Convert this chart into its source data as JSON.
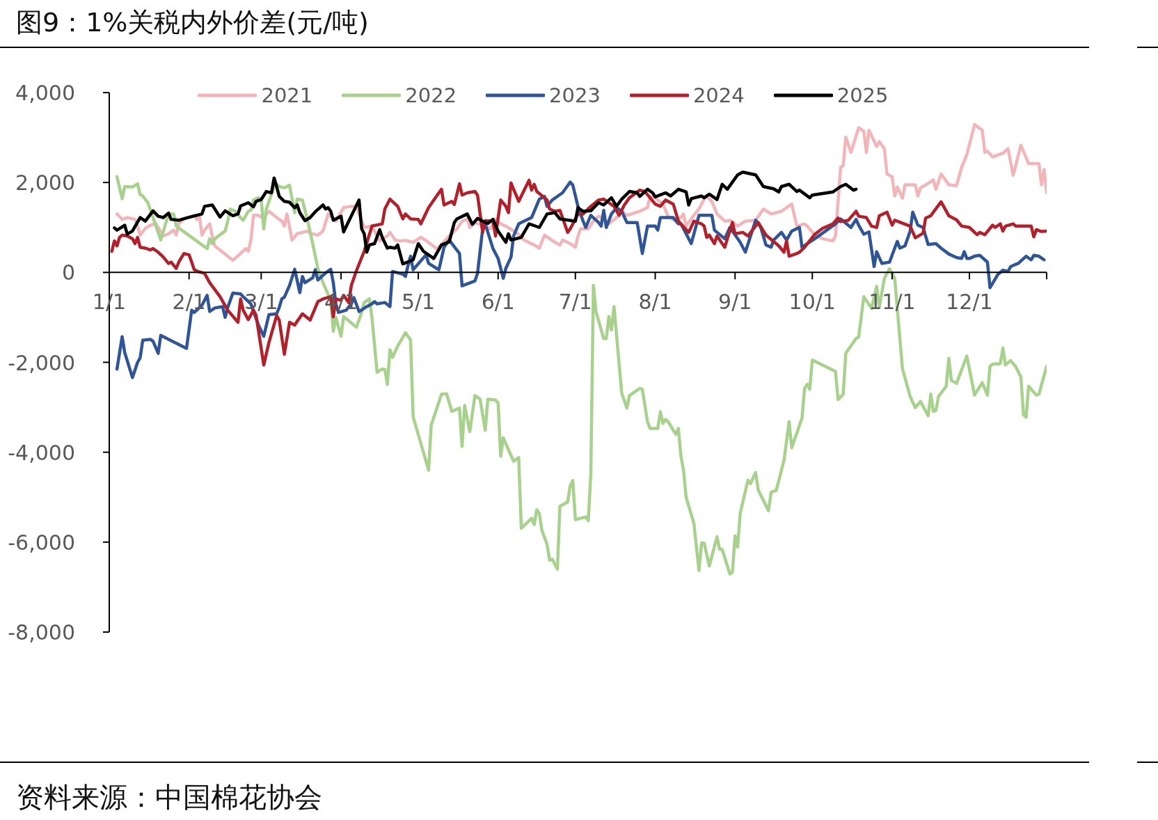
{
  "chart_data": {
    "type": "line",
    "title": "图9：1%关税内外价差(元/吨)",
    "annotations": [
      "资料来源：中国棉花协会"
    ],
    "xlim": [
      "--01-01",
      "--12-31"
    ],
    "xticks": [
      {
        "value": "--01-01",
        "label": "1/1"
      },
      {
        "value": "--02-01",
        "label": "2/1"
      },
      {
        "value": "--03-01",
        "label": "3/1"
      },
      {
        "value": "--04-01",
        "label": "4/1"
      },
      {
        "value": "--05-01",
        "label": "5/1"
      },
      {
        "value": "--06-01",
        "label": "6/1"
      },
      {
        "value": "--07-01",
        "label": "7/1"
      },
      {
        "value": "--08-01",
        "label": "8/1"
      },
      {
        "value": "--09-01",
        "label": "9/1"
      },
      {
        "value": "--10-01",
        "label": "10/1"
      },
      {
        "value": "--11-01",
        "label": "11/1"
      },
      {
        "value": "--12-01",
        "label": "12/1"
      },
      {
        "value": "--12-31",
        "label": null
      }
    ],
    "ylim": [
      -8000,
      4000
    ],
    "yticks": [
      {
        "value": -8000,
        "label": "-8,000"
      },
      {
        "value": -6000,
        "label": "-6,000"
      },
      {
        "value": -4000,
        "label": "-4,000"
      },
      {
        "value": -2000,
        "label": "-2,000"
      },
      {
        "value": 0,
        "label": "0"
      },
      {
        "value": 2000,
        "label": "2,000"
      },
      {
        "value": 4000,
        "label": "4,000"
      }
    ],
    "legend": "top",
    "series": [
      {
        "name": "2021",
        "color": "#f2b5b9",
        "x": [
          "--01-04",
          "--01-06",
          "--01-08",
          "--01-11",
          "--01-12",
          "--01-13",
          "--01-15",
          "--01-17",
          "--01-19",
          "--01-22",
          "--01-24",
          "--01-26",
          "--01-27",
          "--01-28",
          "--01-30",
          "--02-03",
          "--02-04",
          "--02-05",
          "--02-06",
          "--02-07",
          "--02-09",
          "--02-10",
          "--02-11",
          "--02-18",
          "--02-21",
          "--02-23",
          "--02-24",
          "--02-25",
          "--02-26",
          "--02-28",
          "--03-02",
          "--03-03",
          "--03-04",
          "--03-07",
          "--03-09",
          "--03-10",
          "--03-11",
          "--03-13",
          "--03-15",
          "--03-17",
          "--03-19",
          "--03-20",
          "--03-23",
          "--03-25",
          "--03-27",
          "--03-30",
          "--04-02",
          "--04-05",
          "--04-07",
          "--04-08",
          "--04-10",
          "--04-13",
          "--04-16",
          "--04-17",
          "--04-19",
          "--04-20",
          "--04-22",
          "--04-24",
          "--04-26",
          "--04-29",
          "--05-02",
          "--05-04",
          "--05-08",
          "--05-09",
          "--05-12",
          "--05-13",
          "--05-16",
          "--05-18",
          "--05-20",
          "--05-21",
          "--05-23",
          "--05-26",
          "--05-29",
          "--05-31",
          "--06-02",
          "--06-04",
          "--06-07",
          "--06-10",
          "--06-11",
          "--06-15",
          "--06-17",
          "--06-19",
          "--06-21",
          "--06-23",
          "--06-25",
          "--06-26",
          "--06-29",
          "--07-01",
          "--07-02",
          "--07-03",
          "--07-06",
          "--07-08",
          "--07-10",
          "--07-12",
          "--07-14",
          "--07-17",
          "--07-19",
          "--07-21",
          "--07-26",
          "--07-29",
          "--07-30",
          "--08-01",
          "--08-04",
          "--08-06",
          "--08-09",
          "--08-11",
          "--08-12",
          "--08-13",
          "--08-16",
          "--08-18",
          "--08-20",
          "--08-21",
          "--08-23",
          "--08-25",
          "--08-28",
          "--08-30",
          "--09-02",
          "--09-05",
          "--09-09",
          "--09-12",
          "--09-15",
          "--09-19",
          "--09-23",
          "--09-25",
          "--09-28",
          "--09-29",
          "--10-02",
          "--10-05",
          "--10-09",
          "--10-10",
          "--10-12",
          "--10-13",
          "--10-14",
          "--10-16",
          "--10-19",
          "--10-21",
          "--10-22",
          "--10-23",
          "--10-26",
          "--10-27",
          "--10-29",
          "--10-30",
          "--11-01",
          "--11-02",
          "--11-03",
          "--11-05",
          "--11-06",
          "--11-10",
          "--11-11",
          "--11-12",
          "--11-15",
          "--11-17",
          "--11-18",
          "--11-20",
          "--11-22",
          "--11-23",
          "--11-26",
          "--11-28",
          "--11-30",
          "--12-02",
          "--12-03",
          "--12-06",
          "--12-07",
          "--12-08",
          "--12-10",
          "--12-14",
          "--12-16",
          "--12-18",
          "--12-21",
          "--12-24",
          "--12-28",
          "--12-29",
          "--12-30",
          "--12-31"
        ],
        "values": [
          1300,
          1180,
          1220,
          1180,
          1030,
          830,
          980,
          1050,
          1090,
          810,
          860,
          940,
          830,
          1080,
          1190,
          1270,
          1180,
          1270,
          830,
          940,
          1080,
          810,
          590,
          270,
          420,
          530,
          470,
          720,
          1270,
          1270,
          1190,
          1300,
          1360,
          1220,
          1140,
          1030,
          1300,
          720,
          860,
          890,
          920,
          870,
          830,
          920,
          1300,
          1140,
          1440,
          1470,
          1470,
          1300,
          1000,
          1030,
          700,
          750,
          810,
          890,
          720,
          700,
          710,
          670,
          780,
          710,
          530,
          560,
          750,
          810,
          970,
          1140,
          1190,
          1000,
          1110,
          1050,
          970,
          1190,
          1080,
          1030,
          920,
          810,
          720,
          610,
          540,
          830,
          750,
          670,
          610,
          720,
          640,
          560,
          810,
          970,
          970,
          1140,
          1250,
          1190,
          1080,
          1220,
          1360,
          1270,
          1360,
          1440,
          1690,
          1660,
          1520,
          1250,
          1140,
          1220,
          1300,
          1030,
          1270,
          1410,
          1630,
          1690,
          1580,
          1300,
          1140,
          1160,
          1030,
          1140,
          1160,
          1410,
          1300,
          1360,
          1520,
          1030,
          1080,
          1030,
          830,
          750,
          700,
          810,
          2340,
          2370,
          3010,
          2670,
          3220,
          3140,
          2670,
          3160,
          2800,
          2910,
          2750,
          2190,
          2130,
          1700,
          1900,
          1650,
          1950,
          1950,
          1700,
          1880,
          1980,
          2060,
          1850,
          2190,
          2030,
          1950,
          1930,
          2340,
          2620,
          3060,
          3290,
          3160,
          2670,
          2700,
          2570,
          2650,
          2750,
          2160,
          2830,
          2420,
          2420,
          1950,
          2290,
          1770
        ]
      },
      {
        "name": "2022",
        "color": "#a9d18e",
        "x": [
          "--01-04",
          "--01-06",
          "--01-07",
          "--01-10",
          "--01-12",
          "--01-13",
          "--01-14",
          "--01-16",
          "--01-21",
          "--01-24",
          "--01-26",
          "--01-27",
          "--02-08",
          "--02-09",
          "--02-10",
          "--02-11",
          "--02-15",
          "--02-16",
          "--02-17",
          "--02-19",
          "--02-21",
          "--02-22",
          "--02-24",
          "--02-25",
          "--02-26",
          "--02-28",
          "--03-01",
          "--03-02",
          "--03-03",
          "--03-05",
          "--03-06",
          "--03-07",
          "--03-08",
          "--03-10",
          "--03-12",
          "--03-14",
          "--03-15",
          "--03-17",
          "--03-19",
          "--03-21",
          "--03-23",
          "--03-25",
          "--03-28",
          "--03-29",
          "--03-30",
          "--04-01",
          "--04-02",
          "--04-07",
          "--04-09",
          "--04-10",
          "--04-12",
          "--04-13",
          "--04-15",
          "--04-17",
          "--04-18",
          "--04-19",
          "--04-20",
          "--04-21",
          "--04-23",
          "--04-26",
          "--04-28",
          "--04-29",
          "--05-05",
          "--05-06",
          "--05-10",
          "--05-12",
          "--05-14",
          "--05-17",
          "--05-18",
          "--05-19",
          "--05-21",
          "--05-23",
          "--05-25",
          "--05-27",
          "--05-28",
          "--05-31",
          "--06-01",
          "--06-02",
          "--06-03",
          "--06-07",
          "--06-09",
          "--06-10",
          "--06-14",
          "--06-15",
          "--06-16",
          "--06-17",
          "--06-18",
          "--06-20",
          "--06-21",
          "--06-22",
          "--06-24",
          "--06-25",
          "--06-28",
          "--06-29",
          "--06-30",
          "--07-01",
          "--07-05",
          "--07-06",
          "--07-07",
          "--07-08",
          "--07-09",
          "--07-12",
          "--07-13",
          "--07-14",
          "--07-15",
          "--07-16",
          "--07-19",
          "--07-21",
          "--07-22",
          "--07-26",
          "--07-27",
          "--07-29",
          "--07-30",
          "--08-02",
          "--08-03",
          "--08-04",
          "--08-05",
          "--08-06",
          "--08-09",
          "--08-10",
          "--08-11",
          "--08-12",
          "--08-13",
          "--08-16",
          "--08-18",
          "--08-19",
          "--08-20",
          "--08-22",
          "--08-25",
          "--08-26",
          "--08-27",
          "--08-30",
          "--08-31",
          "--09-01",
          "--09-02",
          "--09-03",
          "--09-06",
          "--09-07",
          "--09-09",
          "--09-10",
          "--09-14",
          "--09-15",
          "--09-17",
          "--09-20",
          "--09-22",
          "--09-23",
          "--09-25",
          "--09-27",
          "--09-28",
          "--09-29",
          "--09-30",
          "--10-01",
          "--10-10",
          "--10-11",
          "--10-13",
          "--10-14",
          "--10-18",
          "--10-19",
          "--10-21",
          "--10-24",
          "--10-26",
          "--10-27",
          "--10-29",
          "--10-31",
          "--11-02",
          "--11-05",
          "--11-08",
          "--11-10",
          "--11-12",
          "--11-15",
          "--11-16",
          "--11-17",
          "--11-18",
          "--11-19",
          "--11-22",
          "--11-23",
          "--11-24",
          "--11-26",
          "--11-30",
          "--12-03",
          "--12-06",
          "--12-08",
          "--12-09",
          "--12-10",
          "--12-13",
          "--12-14",
          "--12-15",
          "--12-17",
          "--12-19",
          "--12-21",
          "--12-22",
          "--12-23",
          "--12-24",
          "--12-27",
          "--12-28",
          "--12-31"
        ],
        "values": [
          2130,
          1640,
          1910,
          1900,
          1970,
          1730,
          1700,
          1550,
          720,
          1300,
          1300,
          1030,
          530,
          750,
          640,
          750,
          920,
          1140,
          1410,
          1360,
          1220,
          1160,
          1360,
          1380,
          1610,
          1660,
          1630,
          970,
          1410,
          1740,
          1910,
          1960,
          1910,
          1880,
          1940,
          1330,
          1630,
          1610,
          1160,
          640,
          90,
          -230,
          -620,
          -1310,
          -1000,
          -1420,
          -980,
          -1220,
          -890,
          -670,
          -590,
          -1000,
          -2220,
          -2150,
          -2160,
          -2490,
          -1720,
          -1890,
          -1640,
          -1340,
          -1500,
          -3210,
          -4400,
          -3400,
          -2710,
          -2700,
          -3090,
          -3020,
          -3870,
          -2960,
          -3540,
          -2740,
          -2820,
          -3510,
          -2820,
          -2840,
          -2910,
          -4090,
          -3680,
          -4200,
          -4120,
          -5690,
          -5470,
          -5610,
          -5280,
          -5360,
          -5740,
          -6050,
          -6400,
          -6380,
          -6600,
          -5200,
          -5110,
          -4740,
          -4630,
          -5500,
          -5440,
          -5520,
          -4480,
          -290,
          -870,
          -1470,
          -1470,
          -980,
          -1280,
          -760,
          -2690,
          -3020,
          -2740,
          -2580,
          -2600,
          -3320,
          -3470,
          -3470,
          -3100,
          -3360,
          -3270,
          -3320,
          -3600,
          -3470,
          -4090,
          -4400,
          -5000,
          -5580,
          -6630,
          -6020,
          -6020,
          -6530,
          -5880,
          -6160,
          -6160,
          -6710,
          -6660,
          -5860,
          -6110,
          -5360,
          -4620,
          -4700,
          -4450,
          -4840,
          -5300,
          -4890,
          -4850,
          -4180,
          -3320,
          -3900,
          -3570,
          -3240,
          -2580,
          -2490,
          -2600,
          -1950,
          -2200,
          -2830,
          -2710,
          -1800,
          -1470,
          -1440,
          -540,
          -800,
          -310,
          -780,
          -130,
          80,
          -130,
          -2140,
          -2760,
          -3010,
          -2870,
          -3190,
          -2710,
          -3090,
          -3070,
          -2760,
          -2530,
          -1910,
          -2400,
          -2470,
          -1860,
          -2730,
          -2450,
          -2730,
          -2090,
          -2040,
          -2030,
          -1680,
          -2060,
          -1960,
          -2100,
          -2320,
          -3170,
          -3220,
          -2530,
          -2730,
          -2710,
          -2090
        ]
      },
      {
        "name": "2023",
        "color": "#2f5597",
        "x": [
          "--01-04",
          "--01-06",
          "--01-07",
          "--01-10",
          "--01-12",
          "--01-13",
          "--01-14",
          "--01-17",
          "--01-18",
          "--01-20",
          "--01-21",
          "--01-31",
          "--02-02",
          "--02-03",
          "--02-06",
          "--02-08",
          "--02-09",
          "--02-11",
          "--02-14",
          "--02-15",
          "--02-16",
          "--02-18",
          "--02-21",
          "--02-22",
          "--02-25",
          "--02-26",
          "--02-28",
          "--03-02",
          "--03-04",
          "--03-07",
          "--03-08",
          "--03-09",
          "--03-10",
          "--03-12",
          "--03-14",
          "--03-16",
          "--03-17",
          "--03-18",
          "--03-21",
          "--03-22",
          "--03-23",
          "--03-26",
          "--03-28",
          "--03-29",
          "--03-30",
          "--03-31",
          "--04-03",
          "--04-05",
          "--04-06",
          "--04-08",
          "--04-11",
          "--04-13",
          "--04-14",
          "--04-15",
          "--04-18",
          "--04-20",
          "--04-21",
          "--04-25",
          "--04-26",
          "--04-27",
          "--04-28",
          "--04-29",
          "--05-04",
          "--05-05",
          "--05-09",
          "--05-11",
          "--05-13",
          "--05-17",
          "--05-18",
          "--05-23",
          "--05-24",
          "--05-26",
          "--05-27",
          "--05-30",
          "--06-01",
          "--06-03",
          "--06-04",
          "--06-06",
          "--06-07",
          "--06-09",
          "--06-11",
          "--06-14",
          "--06-17",
          "--06-19",
          "--06-20",
          "--06-22",
          "--06-26",
          "--06-29",
          "--06-30",
          "--07-02",
          "--07-04",
          "--07-05",
          "--07-07",
          "--07-10",
          "--07-11",
          "--07-12",
          "--07-13",
          "--07-15",
          "--07-17",
          "--07-19",
          "--07-21",
          "--07-25",
          "--07-27",
          "--07-29",
          "--08-01",
          "--08-02",
          "--08-03",
          "--08-08",
          "--08-10",
          "--08-11",
          "--08-15",
          "--08-18",
          "--08-23",
          "--08-24",
          "--08-28",
          "--08-30",
          "--09-03",
          "--09-05",
          "--09-09",
          "--09-11",
          "--09-13",
          "--09-15",
          "--09-16",
          "--09-19",
          "--09-21",
          "--09-23",
          "--09-26",
          "--09-27",
          "--10-02",
          "--10-10",
          "--10-12",
          "--10-16",
          "--10-18",
          "--10-19",
          "--10-21",
          "--10-23",
          "--10-25",
          "--10-26",
          "--10-28",
          "--10-31",
          "--11-02",
          "--11-03",
          "--11-04",
          "--11-06",
          "--11-08",
          "--11-09",
          "--11-11",
          "--11-13",
          "--11-15",
          "--11-18",
          "--11-20",
          "--11-23",
          "--11-26",
          "--11-28",
          "--11-29",
          "--11-30",
          "--12-01",
          "--12-03",
          "--12-05",
          "--12-07",
          "--12-08",
          "--12-09",
          "--12-12",
          "--12-14",
          "--12-16",
          "--12-17",
          "--12-19",
          "--12-20",
          "--12-23",
          "--12-25",
          "--12-26",
          "--12-28",
          "--12-30"
        ],
        "values": [
          -2150,
          -1430,
          -1780,
          -2340,
          -2000,
          -1900,
          -1510,
          -1490,
          -1530,
          -1800,
          -1400,
          -1690,
          -840,
          -890,
          -730,
          -510,
          -870,
          -790,
          -760,
          -1000,
          -780,
          -460,
          -480,
          -540,
          -700,
          -870,
          -1180,
          -1420,
          -940,
          -920,
          -780,
          -590,
          -550,
          -290,
          70,
          -450,
          -90,
          -230,
          -120,
          60,
          -170,
          -10,
          70,
          -230,
          -700,
          -890,
          -840,
          -700,
          -560,
          -870,
          -760,
          -700,
          -650,
          -700,
          -670,
          -760,
          20,
          -40,
          -90,
          150,
          360,
          60,
          390,
          200,
          60,
          560,
          720,
          420,
          -300,
          -190,
          -20,
          970,
          1080,
          530,
          310,
          -130,
          90,
          340,
          810,
          1080,
          1140,
          1220,
          1630,
          1690,
          1470,
          1610,
          1770,
          2010,
          1940,
          1470,
          1140,
          1000,
          1270,
          1110,
          1030,
          1380,
          1000,
          1300,
          1440,
          1360,
          1110,
          1110,
          420,
          1030,
          1030,
          940,
          1220,
          1220,
          1080,
          1080,
          640,
          1270,
          1270,
          940,
          750,
          1000,
          670,
          450,
          1160,
          1000,
          610,
          560,
          720,
          890,
          720,
          920,
          1000,
          560,
          750,
          1080,
          1190,
          1000,
          1180,
          1050,
          850,
          900,
          130,
          460,
          200,
          230,
          540,
          690,
          540,
          590,
          920,
          1340,
          1050,
          1000,
          620,
          640,
          540,
          410,
          330,
          310,
          460,
          310,
          310,
          360,
          380,
          280,
          230,
          -340,
          -50,
          50,
          20,
          130,
          180,
          200,
          360,
          280,
          380,
          360,
          280
        ]
      },
      {
        "name": "2024",
        "color": "#b2202b",
        "x": [
          "--01-02",
          "--01-03",
          "--01-04",
          "--01-05",
          "--01-06",
          "--01-08",
          "--01-10",
          "--01-11",
          "--01-12",
          "--01-13",
          "--01-15",
          "--01-17",
          "--01-18",
          "--01-20",
          "--01-22",
          "--01-24",
          "--01-25",
          "--01-27",
          "--01-28",
          "--01-30",
          "--02-01",
          "--02-02",
          "--02-03",
          "--02-05",
          "--02-07",
          "--02-09",
          "--02-13",
          "--02-16",
          "--02-20",
          "--02-21",
          "--02-22",
          "--02-24",
          "--02-26",
          "--02-27",
          "--03-02",
          "--03-04",
          "--03-07",
          "--03-08",
          "--03-10",
          "--03-12",
          "--03-14",
          "--03-17",
          "--03-20",
          "--03-23",
          "--03-25",
          "--03-28",
          "--03-29",
          "--03-30",
          "--04-01",
          "--04-02",
          "--04-04",
          "--04-05",
          "--04-07",
          "--04-10",
          "--04-13",
          "--04-17",
          "--04-18",
          "--04-20",
          "--04-23",
          "--04-25",
          "--04-26",
          "--04-28",
          "--05-01",
          "--05-02",
          "--05-05",
          "--05-08",
          "--05-10",
          "--05-11",
          "--05-14",
          "--05-15",
          "--05-17",
          "--05-18",
          "--05-20",
          "--05-23",
          "--05-24",
          "--05-26",
          "--05-27",
          "--05-30",
          "--05-31",
          "--06-02",
          "--06-04",
          "--06-05",
          "--06-06",
          "--06-09",
          "--06-13",
          "--06-14",
          "--06-15",
          "--06-16",
          "--06-20",
          "--06-21",
          "--06-23",
          "--06-25",
          "--06-28",
          "--06-29",
          "--07-02",
          "--07-04",
          "--07-07",
          "--07-10",
          "--07-12",
          "--07-14",
          "--07-16",
          "--07-18",
          "--07-20",
          "--07-22",
          "--07-26",
          "--07-28",
          "--08-01",
          "--08-03",
          "--08-05",
          "--08-08",
          "--08-10",
          "--08-14",
          "--08-16",
          "--08-19",
          "--08-20",
          "--08-21",
          "--08-22",
          "--08-24",
          "--08-25",
          "--08-28",
          "--08-31",
          "--09-01",
          "--09-04",
          "--09-06",
          "--09-10",
          "--09-13",
          "--09-18",
          "--09-20",
          "--09-21",
          "--09-22",
          "--09-25",
          "--09-26",
          "--09-28",
          "--10-02",
          "--10-05",
          "--10-09",
          "--10-11",
          "--10-12",
          "--10-15",
          "--10-16",
          "--10-18",
          "--10-19",
          "--10-22",
          "--10-24",
          "--10-26",
          "--10-27",
          "--10-30",
          "--11-01",
          "--11-02",
          "--11-08",
          "--11-10",
          "--11-13",
          "--11-14",
          "--11-16",
          "--11-20",
          "--11-23",
          "--11-26",
          "--11-28",
          "--12-01",
          "--12-04",
          "--12-05",
          "--12-07",
          "--12-10",
          "--12-11",
          "--12-13",
          "--12-14",
          "--12-15",
          "--12-18",
          "--12-19",
          "--12-25",
          "--12-26",
          "--12-27",
          "--12-29",
          "--12-31"
        ],
        "values": [
          470,
          700,
          590,
          780,
          830,
          810,
          750,
          640,
          780,
          560,
          540,
          500,
          530,
          450,
          340,
          200,
          230,
          90,
          230,
          420,
          390,
          230,
          60,
          10,
          -20,
          -230,
          -540,
          -840,
          -1110,
          -590,
          -840,
          -1050,
          -840,
          -950,
          -2060,
          -1560,
          -960,
          -1060,
          -1820,
          -1110,
          -1170,
          -920,
          -1060,
          -650,
          -590,
          -540,
          -990,
          -590,
          -620,
          -510,
          -670,
          -290,
          40,
          470,
          1030,
          1080,
          1410,
          1630,
          1470,
          1190,
          1300,
          1190,
          1180,
          1080,
          1440,
          1690,
          1850,
          1500,
          1580,
          1510,
          1970,
          1720,
          1770,
          1800,
          1720,
          890,
          1150,
          1140,
          810,
          1610,
          1470,
          1330,
          1990,
          1580,
          2050,
          1830,
          1960,
          1800,
          1610,
          1410,
          1360,
          1380,
          890,
          970,
          1300,
          1300,
          1470,
          1610,
          1630,
          1550,
          1470,
          1270,
          1500,
          1660,
          1830,
          1800,
          1520,
          1470,
          1610,
          1520,
          1140,
          890,
          1140,
          1080,
          1030,
          780,
          830,
          640,
          810,
          560,
          1110,
          860,
          890,
          810,
          1110,
          830,
          590,
          450,
          700,
          360,
          420,
          450,
          560,
          850,
          980,
          1080,
          1210,
          1130,
          1160,
          1230,
          1360,
          1250,
          1220,
          1030,
          1000,
          1260,
          1340,
          1050,
          1160,
          1030,
          770,
          870,
          1210,
          1260,
          1570,
          1260,
          1170,
          1030,
          1000,
          840,
          890,
          840,
          1050,
          1000,
          1080,
          920,
          1030,
          1080,
          1030,
          1030,
          790,
          950,
          910,
          920
        ]
      },
      {
        "name": "2025",
        "color": "#000000",
        "x": [
          "--01-03",
          "--01-04",
          "--01-07",
          "--01-08",
          "--01-10",
          "--01-13",
          "--01-15",
          "--01-18",
          "--01-20",
          "--01-22",
          "--01-24",
          "--01-25",
          "--01-28",
          "--01-31",
          "--02-06",
          "--02-07",
          "--02-10",
          "--02-13",
          "--02-15",
          "--02-18",
          "--02-20",
          "--02-21",
          "--02-24",
          "--02-26",
          "--02-27",
          "--03-01",
          "--03-03",
          "--03-05",
          "--03-06",
          "--03-07",
          "--03-08",
          "--03-10",
          "--03-12",
          "--03-14",
          "--03-15",
          "--03-16",
          "--03-18",
          "--03-20",
          "--03-22",
          "--03-25",
          "--03-26",
          "--03-27",
          "--03-28",
          "--03-29",
          "--04-01",
          "--04-02",
          "--04-04",
          "--04-08",
          "--04-09",
          "--04-10",
          "--04-11",
          "--04-12",
          "--04-14",
          "--04-16",
          "--04-17",
          "--04-19",
          "--04-20",
          "--04-22",
          "--04-23",
          "--04-25",
          "--04-29",
          "--05-01",
          "--05-03",
          "--05-07",
          "--05-10",
          "--05-13",
          "--05-15",
          "--05-16",
          "--05-20",
          "--05-22",
          "--05-24",
          "--05-26",
          "--05-28",
          "--05-30",
          "--06-01",
          "--06-04",
          "--06-05",
          "--06-06",
          "--06-10",
          "--06-13",
          "--06-17",
          "--06-20",
          "--06-23",
          "--06-25",
          "--07-01",
          "--07-02",
          "--07-04",
          "--07-07",
          "--07-10",
          "--07-12",
          "--07-15",
          "--07-17",
          "--07-19",
          "--07-22",
          "--07-25",
          "--07-26",
          "--07-29",
          "--07-31",
          "--08-01",
          "--08-05",
          "--08-07",
          "--08-10",
          "--08-13",
          "--08-14",
          "--08-15",
          "--08-19",
          "--08-20",
          "--08-22",
          "--08-25",
          "--08-27",
          "--08-29",
          "--09-02",
          "--09-04",
          "--09-09",
          "--09-12",
          "--09-16",
          "--09-18",
          "--09-19",
          "--09-22",
          "--09-25",
          "--09-26",
          "--09-30",
          "--10-01",
          "--10-09",
          "--10-12",
          "--10-14",
          "--10-17",
          "--10-18"
        ],
        "values": [
          990,
          940,
          1050,
          850,
          920,
          1220,
          1140,
          1370,
          1250,
          1220,
          1320,
          1180,
          1160,
          1210,
          1300,
          1470,
          1500,
          1230,
          1370,
          1260,
          1300,
          1480,
          1550,
          1460,
          1580,
          1620,
          1800,
          1770,
          2100,
          1910,
          1690,
          1580,
          1560,
          1440,
          1500,
          1330,
          1150,
          1220,
          1350,
          1500,
          1410,
          1440,
          1360,
          1160,
          1250,
          900,
          1140,
          1610,
          970,
          860,
          450,
          610,
          640,
          950,
          780,
          540,
          560,
          540,
          610,
          190,
          280,
          640,
          470,
          310,
          610,
          680,
          1110,
          1190,
          1300,
          1070,
          1200,
          1140,
          1090,
          1180,
          920,
          670,
          860,
          720,
          780,
          1080,
          1000,
          1300,
          1330,
          1190,
          1140,
          1440,
          1360,
          1370,
          1550,
          1500,
          1660,
          1470,
          1630,
          1800,
          1770,
          1690,
          1850,
          1770,
          1680,
          1770,
          1700,
          1850,
          1790,
          1500,
          1640,
          1700,
          1660,
          1740,
          1620,
          1960,
          1850,
          2170,
          2230,
          2170,
          1910,
          1860,
          1790,
          1910,
          1960,
          1800,
          1830,
          1660,
          1720,
          1790,
          1910,
          1960,
          1830,
          1850
        ]
      }
    ]
  }
}
